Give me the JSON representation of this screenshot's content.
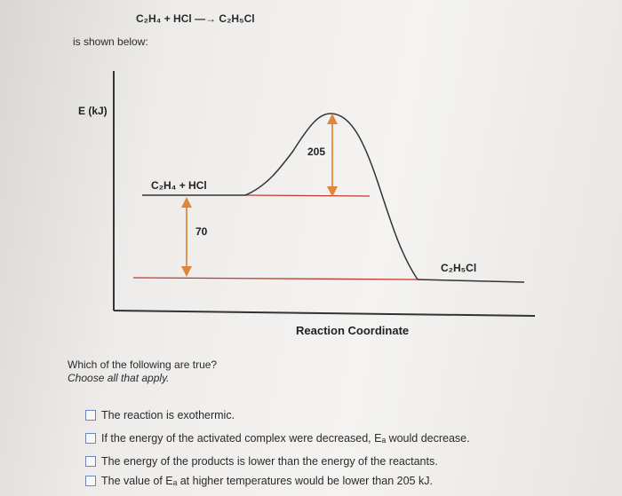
{
  "header": {
    "equation_reactants": "C₂H₄ + HCl",
    "equation_products": "C₂H₅Cl",
    "intro": "is shown below:"
  },
  "diagram": {
    "y_axis_label": "E (kJ)",
    "x_axis_label": "Reaction Coordinate",
    "reactants_label": "C₂H₄ + HCl",
    "products_label": "C₂H₅Cl",
    "activation_label": "205",
    "enthalpy_label": "70"
  },
  "question": {
    "prompt": "Which of the following are true?",
    "instruction": "Choose all that apply.",
    "options": [
      "The reaction is exothermic.",
      "If the energy of the activated complex were decreased, Eₐ would decrease.",
      "The energy of the products is lower than the energy of the reactants.",
      "The value of Eₐ at higher temperatures would be lower than 205 kJ."
    ]
  }
}
